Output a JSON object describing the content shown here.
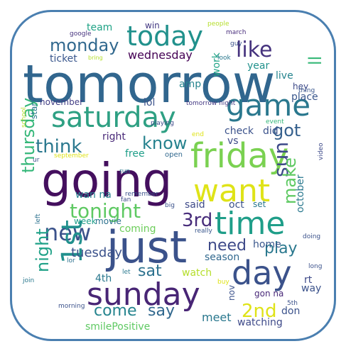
{
  "words": [
    {
      "text": "tomorrow",
      "color": "#31668e"
    },
    {
      "text": "going",
      "color": "#440f5e"
    },
    {
      "text": "just",
      "color": "#3b528b"
    },
    {
      "text": "saturday",
      "color": "#2ea083"
    },
    {
      "text": "friday",
      "color": "#7ad151"
    },
    {
      "text": "day",
      "color": "#3b528b"
    },
    {
      "text": "sunday",
      "color": "#482575"
    },
    {
      "text": "time",
      "color": "#1f9e89"
    },
    {
      "text": "want",
      "color": "#dfe318"
    },
    {
      "text": "game",
      "color": "#2a788e"
    },
    {
      "text": "today",
      "color": "#21918c"
    },
    {
      "text": "new",
      "color": "#3b528b"
    },
    {
      "text": "1st",
      "color": "#21908d"
    },
    {
      "text": "tonight",
      "color": "#5ec962"
    },
    {
      "text": "thursday",
      "color": "#35b779"
    },
    {
      "text": "like",
      "color": "#46337e"
    },
    {
      "text": "think",
      "color": "#2a788e"
    },
    {
      "text": "know",
      "color": "#26828e"
    },
    {
      "text": "monday",
      "color": "#31688e"
    },
    {
      "text": "got",
      "color": "#35608d"
    },
    {
      "text": "sun",
      "color": "#3e4a89"
    },
    {
      "text": "make",
      "color": "#5ec962"
    },
    {
      "text": "3rd",
      "color": "#472c7a"
    },
    {
      "text": "2nd",
      "color": "#dfe318"
    },
    {
      "text": "need",
      "color": "#3e4a89"
    },
    {
      "text": "play",
      "color": "#2a788e"
    },
    {
      "text": "come",
      "color": "#25848e"
    },
    {
      "text": "say",
      "color": "#31688e"
    },
    {
      "text": "sat",
      "color": "#2c718e"
    },
    {
      "text": "night",
      "color": "#1fa187"
    },
    {
      "text": "tuesday",
      "color": "#3b528b"
    },
    {
      "text": "ll",
      "color": "#37b878"
    },
    {
      "text": "wednesday",
      "color": "#440154"
    },
    {
      "text": "check",
      "color": "#3b528b"
    },
    {
      "text": "right",
      "color": "#482878"
    },
    {
      "text": "team",
      "color": "#20a386"
    },
    {
      "text": "win",
      "color": "#443983"
    },
    {
      "text": "live",
      "color": "#25848e"
    },
    {
      "text": "year",
      "color": "#21918c"
    },
    {
      "text": "hey",
      "color": "#3e4a89"
    },
    {
      "text": "place",
      "color": "#39568c"
    },
    {
      "text": "ticket",
      "color": "#39568c"
    },
    {
      "text": "amp",
      "color": "#25848e"
    },
    {
      "text": "work",
      "color": "#20a386"
    },
    {
      "text": "november",
      "color": "#433e85"
    },
    {
      "text": "lol",
      "color": "#3b528b"
    },
    {
      "text": "start",
      "color": "#2a788e"
    },
    {
      "text": "tomorrow night",
      "color": "#443983"
    },
    {
      "text": "did",
      "color": "#3b528b"
    },
    {
      "text": "vs",
      "color": "#3e4a89"
    },
    {
      "text": "free",
      "color": "#1f9e89"
    },
    {
      "text": "open",
      "color": "#31688e"
    },
    {
      "text": "wan na",
      "color": "#26828e"
    },
    {
      "text": "said",
      "color": "#3e4a89"
    },
    {
      "text": "oct",
      "color": "#3b528b"
    },
    {
      "text": "set",
      "color": "#2a788e"
    },
    {
      "text": "october",
      "color": "#2a788e"
    },
    {
      "text": "week",
      "color": "#1f9e89"
    },
    {
      "text": "movie",
      "color": "#2c718e"
    },
    {
      "text": "coming",
      "color": "#6ccd5a"
    },
    {
      "text": "season",
      "color": "#31688e"
    },
    {
      "text": "home",
      "color": "#39568c"
    },
    {
      "text": "watch",
      "color": "#b5de2b"
    },
    {
      "text": "4th",
      "color": "#2a788e"
    },
    {
      "text": "rt",
      "color": "#3e4a89"
    },
    {
      "text": "way",
      "color": "#3b528b"
    },
    {
      "text": "meet",
      "color": "#2a788e"
    },
    {
      "text": "nov",
      "color": "#3b528b"
    },
    {
      "text": "don",
      "color": "#3b528b"
    },
    {
      "text": "watching",
      "color": "#3e4a89"
    },
    {
      "text": "gon na",
      "color": "#482878"
    },
    {
      "text": "smilePositive",
      "color": "#5ec962"
    },
    {
      "text": "google",
      "color": "#46337e"
    },
    {
      "text": "bring",
      "color": "#b5de2b"
    },
    {
      "text": "people",
      "color": "#b5de2b"
    },
    {
      "text": "march",
      "color": "#472c7a"
    },
    {
      "text": "guy",
      "color": "#3b528b"
    },
    {
      "text": "look",
      "color": "#2a788e"
    },
    {
      "text": "thing",
      "color": "#39568c"
    },
    {
      "text": "event",
      "color": "#35b779"
    },
    {
      "text": "playing",
      "color": "#3e4a89"
    },
    {
      "text": "end",
      "color": "#dfe318"
    },
    {
      "text": "school",
      "color": "#b5de2b"
    },
    {
      "text": "ur",
      "color": "#3b528b"
    },
    {
      "text": "september",
      "color": "#dfe318"
    },
    {
      "text": "video",
      "color": "#3e4a89"
    },
    {
      "text": "run",
      "color": "#2a788e"
    },
    {
      "text": "remember",
      "color": "#3b528b"
    },
    {
      "text": "fan",
      "color": "#3e4a89"
    },
    {
      "text": "big",
      "color": "#3b528b"
    },
    {
      "text": "left",
      "color": "#2c718e"
    },
    {
      "text": "really",
      "color": "#39568c"
    },
    {
      "text": "lor",
      "color": "#2c718e"
    },
    {
      "text": "doing",
      "color": "#3b528b"
    },
    {
      "text": "long",
      "color": "#3b528b"
    },
    {
      "text": "let",
      "color": "#2a788e"
    },
    {
      "text": "buy",
      "color": "#dfe318"
    },
    {
      "text": "join",
      "color": "#2a788e"
    },
    {
      "text": "5th",
      "color": "#3b528b"
    },
    {
      "text": "morning",
      "color": "#3b528b"
    }
  ]
}
